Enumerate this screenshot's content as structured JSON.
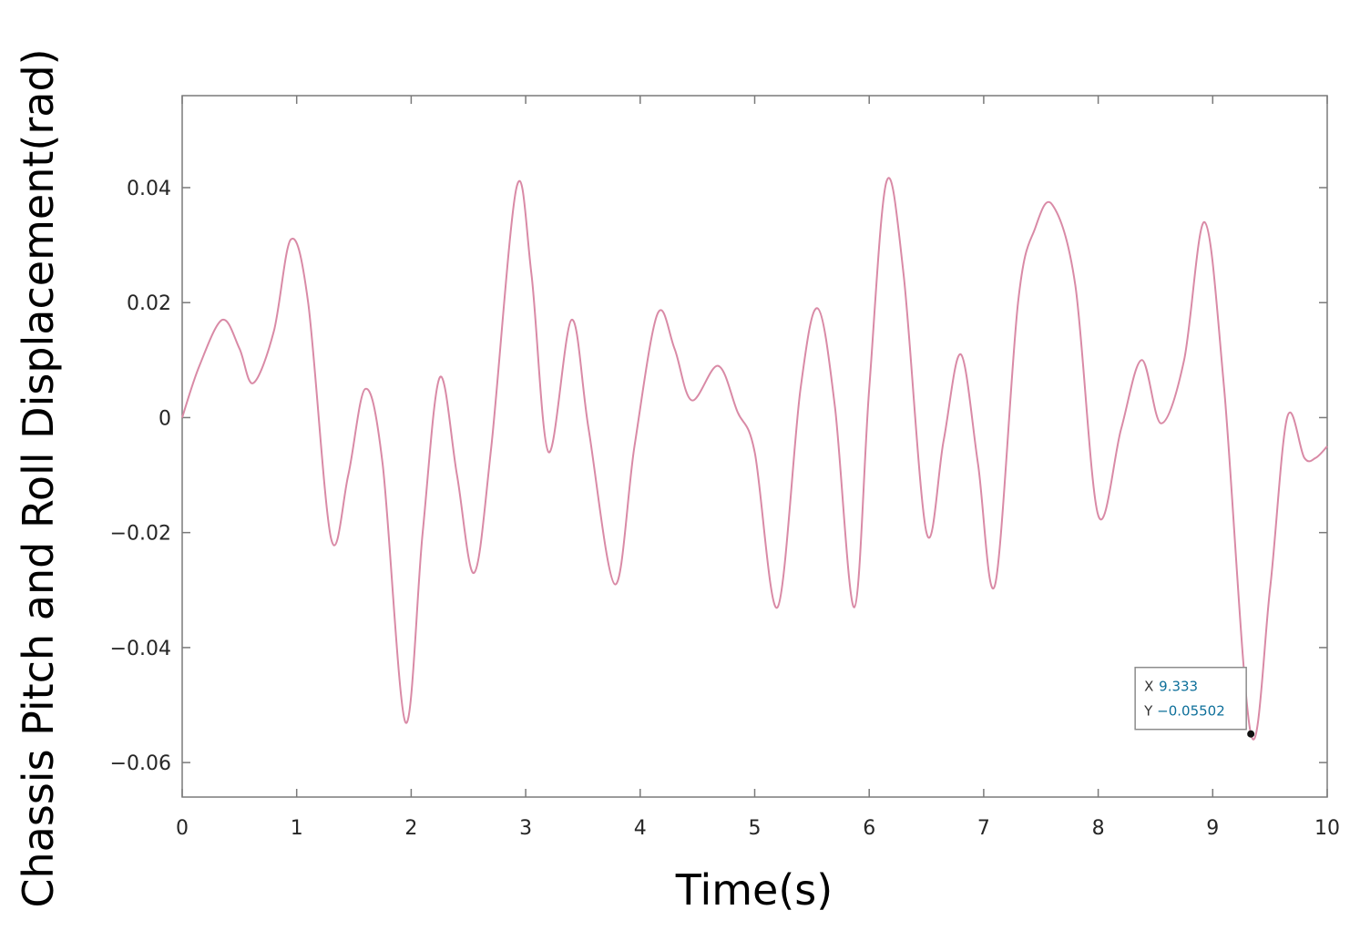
{
  "chart_data": {
    "type": "line",
    "title": "",
    "xlabel": "Time(s)",
    "ylabel": "Chassis Pitch and Roll Displacement(rad)",
    "xlim": [
      0,
      10
    ],
    "ylim": [
      -0.066,
      0.056
    ],
    "x_ticks": [
      0,
      1,
      2,
      3,
      4,
      5,
      6,
      7,
      8,
      9,
      10
    ],
    "x_tick_labels": [
      "0",
      "1",
      "2",
      "3",
      "4",
      "5",
      "6",
      "7",
      "8",
      "9",
      "10"
    ],
    "y_ticks": [
      0.04,
      0.02,
      0,
      -0.02,
      -0.04,
      -0.06
    ],
    "y_tick_labels": [
      "0.04",
      "0.02",
      "0",
      "−0.02",
      "−0.04",
      "−0.06"
    ],
    "grid": false,
    "line_color": "#d98aa6",
    "series": [
      {
        "x": [
          0,
          0.15,
          0.35,
          0.5,
          0.62,
          0.8,
          0.95,
          1.1,
          1.3,
          1.45,
          1.6,
          1.75,
          1.95,
          2.1,
          2.25,
          2.4,
          2.55,
          2.7,
          2.92,
          3.05,
          3.2,
          3.4,
          3.55,
          3.78,
          3.95,
          4.15,
          4.3,
          4.45,
          4.68,
          4.85,
          5.0,
          5.2,
          5.4,
          5.55,
          5.7,
          5.87,
          6.0,
          6.15,
          6.3,
          6.5,
          6.65,
          6.8,
          6.95,
          7.1,
          7.3,
          7.45,
          7.6,
          7.8,
          8.0,
          8.2,
          8.38,
          8.55,
          8.75,
          8.93,
          9.1,
          9.333,
          9.5,
          9.65,
          9.8,
          9.9,
          10
        ],
        "y": [
          0,
          0.009,
          0.017,
          0.012,
          0.006,
          0.015,
          0.031,
          0.02,
          -0.021,
          -0.01,
          0.005,
          -0.008,
          -0.053,
          -0.02,
          0.007,
          -0.01,
          -0.027,
          -0.005,
          0.04,
          0.025,
          -0.006,
          0.017,
          -0.002,
          -0.029,
          -0.005,
          0.018,
          0.012,
          0.003,
          0.009,
          0.001,
          -0.006,
          -0.033,
          0.005,
          0.019,
          0.002,
          -0.033,
          0.005,
          0.041,
          0.025,
          -0.02,
          -0.004,
          0.011,
          -0.008,
          -0.029,
          0.02,
          0.033,
          0.037,
          0.023,
          -0.017,
          -0.002,
          0.01,
          -0.001,
          0.01,
          0.034,
          0.005,
          -0.055,
          -0.03,
          0,
          -0.007,
          -0.007,
          -0.005
        ]
      }
    ],
    "datatip": {
      "x_label": "X",
      "x_value": "9.333",
      "y_label": "Y",
      "y_value": "−0.05502",
      "x": 9.333,
      "y": -0.05502,
      "text_color": "#0d6f9a"
    }
  }
}
